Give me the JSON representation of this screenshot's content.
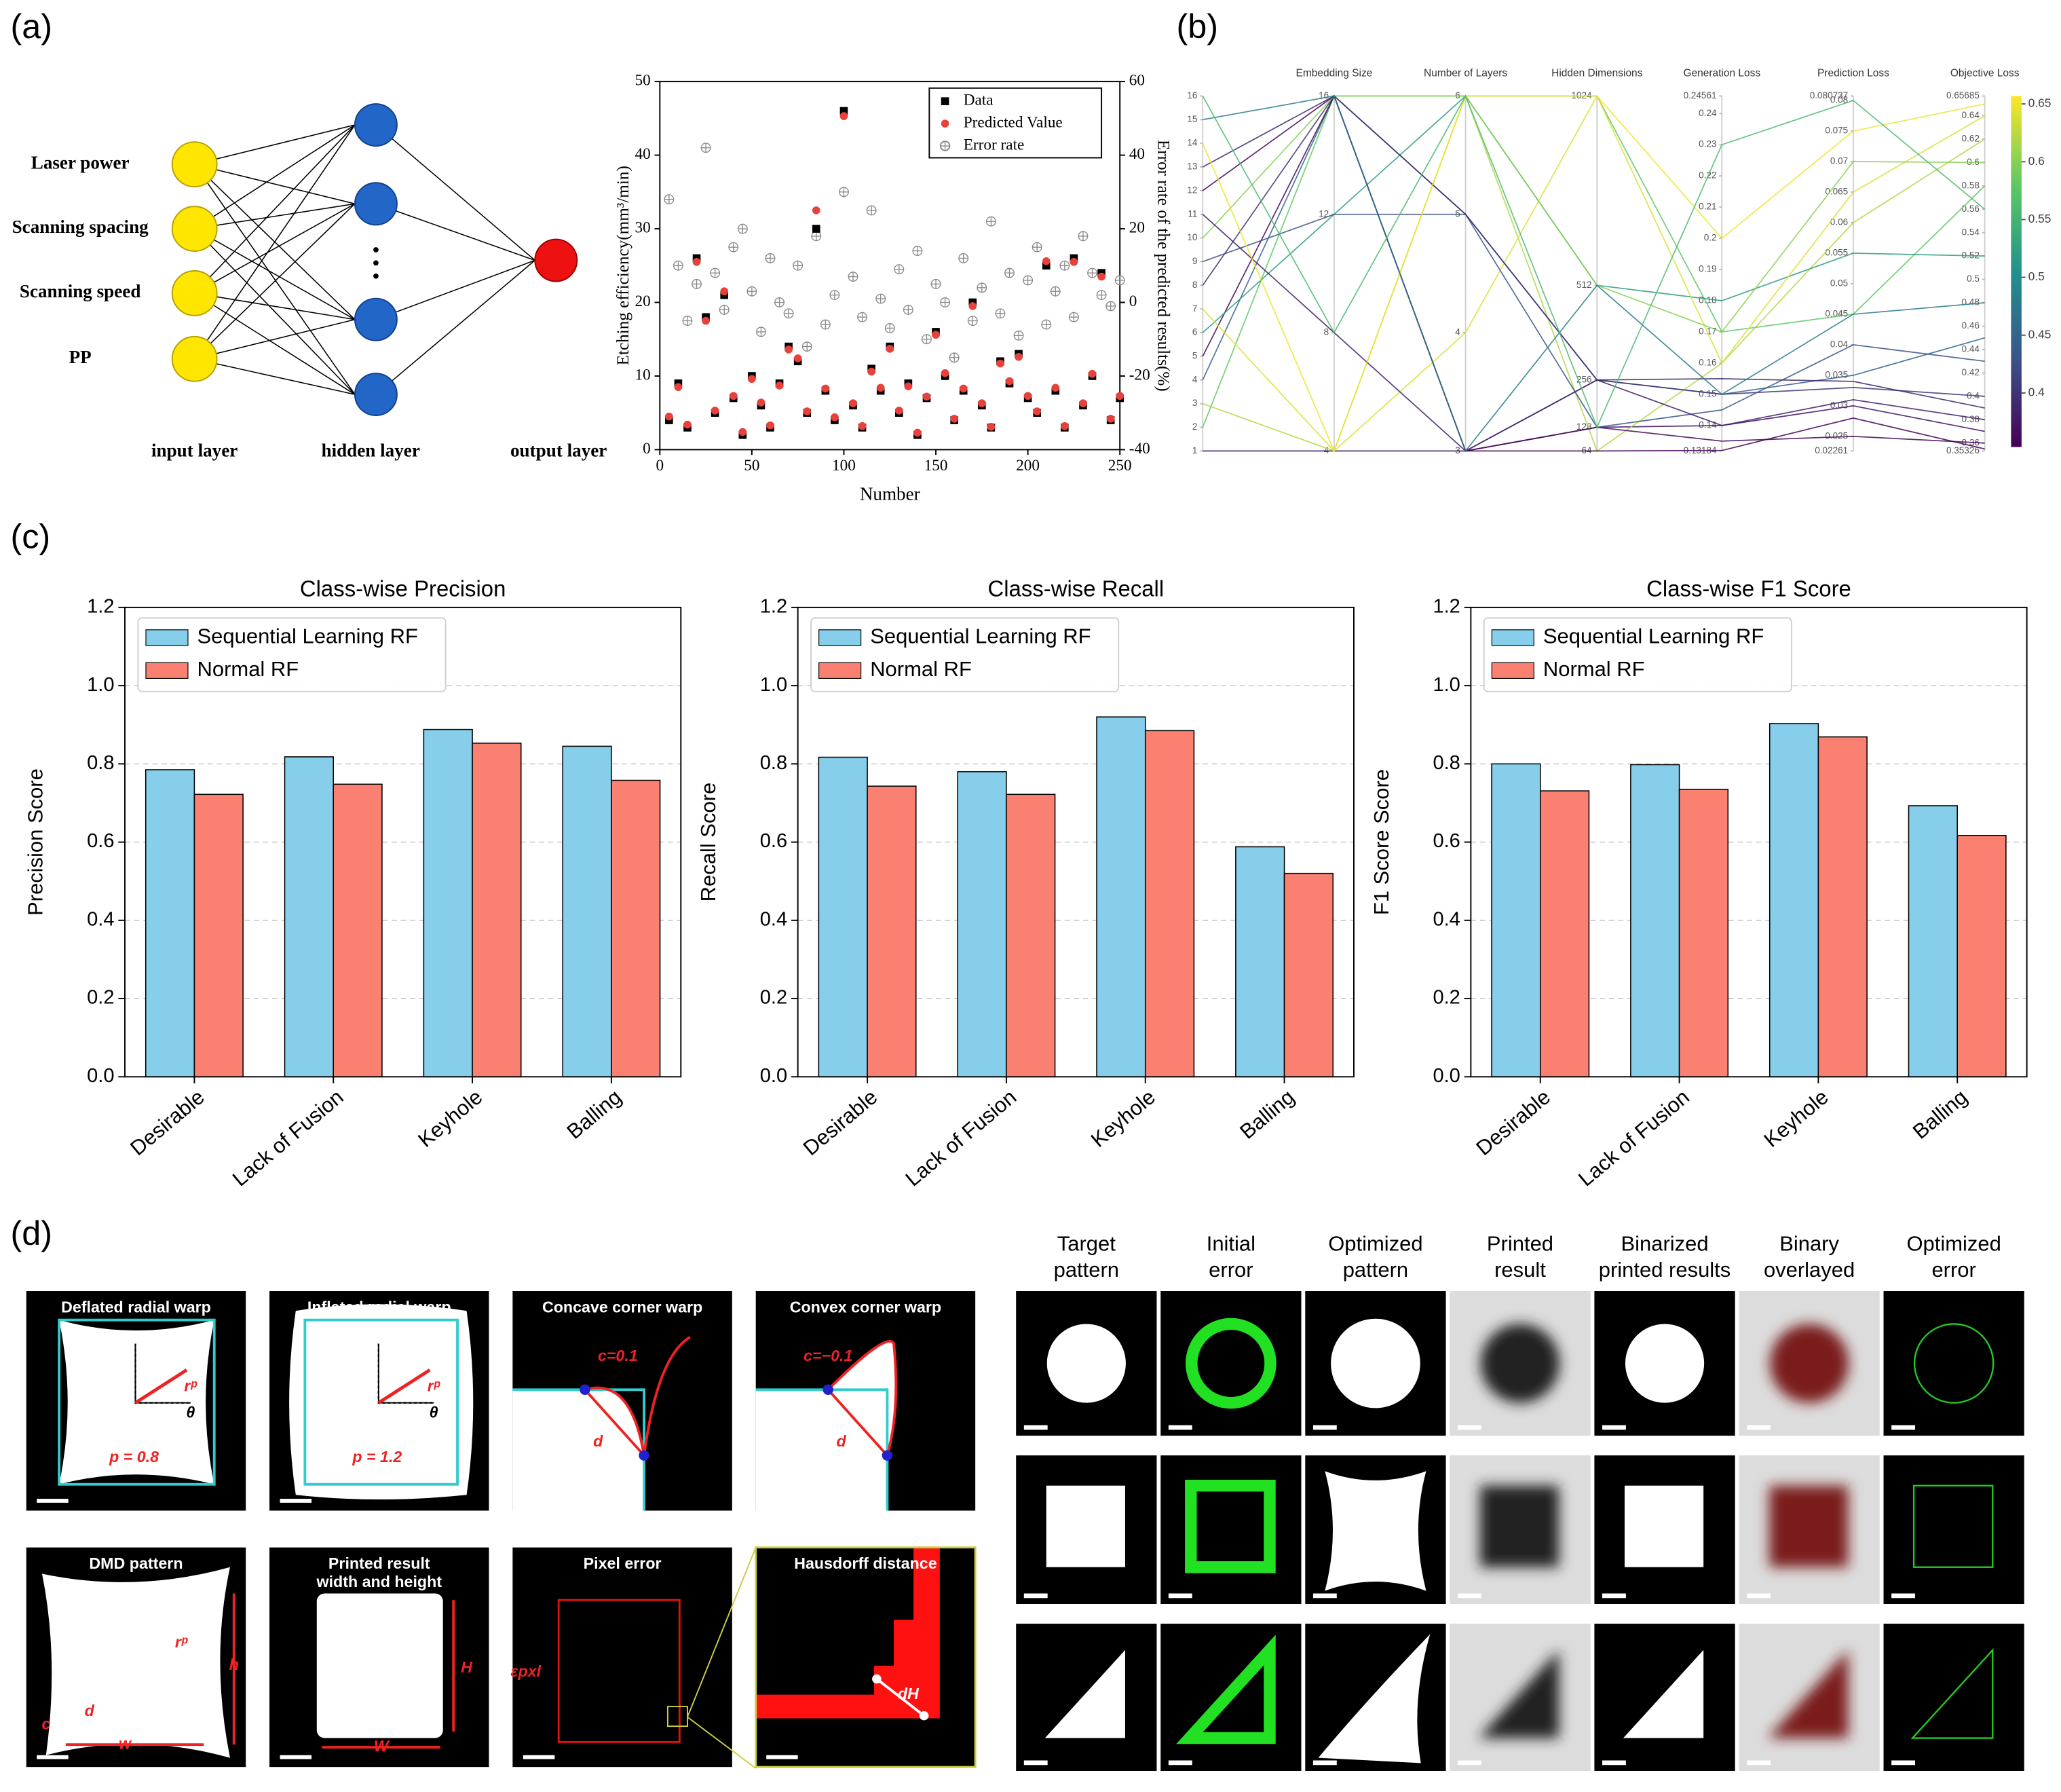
{
  "panel_labels": [
    "(a)",
    "(b)",
    "(c)",
    "(d)"
  ],
  "network": {
    "inputs": [
      "Laser power",
      "Scanning spacing",
      "Scanning speed",
      "PP"
    ],
    "layer_labels": [
      "input layer",
      "hidden layer",
      "output layer"
    ]
  },
  "chart_data": [
    {
      "type": "scatter",
      "xlabel": "Number",
      "ylabel": "Etching efficiency(mm³/min)",
      "y2label": "Error rate of the predicted results(%)",
      "xlim": [
        0,
        250
      ],
      "xticks": [
        0,
        50,
        100,
        150,
        200,
        250
      ],
      "ylim": [
        0,
        50
      ],
      "yticks": [
        0,
        10,
        20,
        30,
        40,
        50
      ],
      "y2lim": [
        -40,
        60
      ],
      "y2ticks": [
        -40,
        -20,
        0,
        20,
        40,
        60
      ],
      "legend": "upper right",
      "x": [
        5,
        10,
        15,
        20,
        25,
        30,
        35,
        40,
        45,
        50,
        55,
        60,
        65,
        70,
        75,
        80,
        85,
        90,
        95,
        100,
        105,
        110,
        115,
        120,
        125,
        130,
        135,
        140,
        145,
        150,
        155,
        160,
        165,
        170,
        175,
        180,
        185,
        190,
        195,
        200,
        205,
        210,
        215,
        220,
        225,
        230,
        235,
        240,
        245,
        250
      ],
      "series": [
        {
          "name": "Data",
          "color": "#000000",
          "marker": "square",
          "values": [
            4,
            9,
            3,
            26,
            18,
            5,
            21,
            7,
            2,
            10,
            6,
            3,
            9,
            14,
            12,
            5,
            30,
            8,
            4,
            46,
            6,
            3,
            11,
            8,
            14,
            5,
            9,
            2,
            7,
            16,
            10,
            4,
            8,
            20,
            6,
            3,
            12,
            9,
            13,
            7,
            5,
            25,
            8,
            3,
            26,
            6,
            10,
            24,
            4,
            7
          ]
        },
        {
          "name": "Predicted Value",
          "color": "#e8403a",
          "marker": "circle",
          "values": [
            4.5,
            8.5,
            3.4,
            25.5,
            17.5,
            5.3,
            21.5,
            7.3,
            2.4,
            9.6,
            6.4,
            3.3,
            8.7,
            13.6,
            12.4,
            5.2,
            32.5,
            8.3,
            4.4,
            45.3,
            6.3,
            3.2,
            10.6,
            8.4,
            13.7,
            5.3,
            8.6,
            2.3,
            7.2,
            15.6,
            10.4,
            4.2,
            8.3,
            19.5,
            6.3,
            3.1,
            11.7,
            9.3,
            12.6,
            7.3,
            5.2,
            25.6,
            8.4,
            3.2,
            25.5,
            6.3,
            10.3,
            23.5,
            4.2,
            7.3
          ]
        },
        {
          "name": "Error rate",
          "color": "#8a8a8a",
          "marker": "circle-plus",
          "axis": "y2",
          "values": [
            28,
            10,
            -5,
            5,
            42,
            8,
            -2,
            15,
            20,
            3,
            -8,
            12,
            0,
            -3,
            10,
            -12,
            18,
            -6,
            2,
            30,
            7,
            -4,
            25,
            1,
            -7,
            9,
            -2,
            14,
            -10,
            5,
            0,
            -15,
            12,
            -5,
            4,
            22,
            -3,
            8,
            -9,
            6,
            15,
            -6,
            3,
            10,
            -4,
            18,
            8,
            2,
            -1,
            6
          ]
        }
      ]
    },
    {
      "type": "parallel",
      "axes": [
        {
          "lim": [
            1,
            16
          ],
          "ticks": [
            1,
            2,
            3,
            4,
            5,
            6,
            7,
            8,
            9,
            10,
            11,
            12,
            13,
            14,
            15,
            16
          ]
        },
        {
          "name": "Embedding Size",
          "lim": [
            4,
            16
          ],
          "ticks": [
            4,
            8,
            12,
            16
          ]
        },
        {
          "name": "Number of Layers",
          "lim": [
            3,
            6
          ],
          "ticks": [
            3,
            4,
            5,
            6
          ]
        },
        {
          "name": "Hidden Dimensions",
          "lim": [
            64,
            1024
          ],
          "ticks": [
            64,
            128,
            256,
            512,
            1024
          ]
        },
        {
          "name": "Generation Loss",
          "lim": [
            0.13184,
            0.24561
          ],
          "ticks": [
            0.13184,
            0.14,
            0.15,
            0.16,
            0.17,
            0.18,
            0.19,
            0.2,
            0.21,
            0.22,
            0.23,
            0.24,
            0.24561
          ]
        },
        {
          "name": "Prediction Loss",
          "lim": [
            0.02261,
            0.080737
          ],
          "ticks": [
            0.02261,
            0.025,
            0.03,
            0.035,
            0.04,
            0.045,
            0.05,
            0.055,
            0.06,
            0.065,
            0.07,
            0.075,
            0.08,
            0.080737
          ]
        },
        {
          "name": "Objective Loss",
          "lim": [
            0.35326,
            0.65685
          ],
          "ticks": [
            0.35326,
            0.36,
            0.38,
            0.4,
            0.42,
            0.44,
            0.46,
            0.48,
            0.5,
            0.52,
            0.54,
            0.56,
            0.58,
            0.6,
            0.62,
            0.64,
            0.65685
          ]
        }
      ],
      "colorbar": {
        "lim": [
          0.35326,
          0.65685
        ],
        "ticks": [
          0.4,
          0.45,
          0.5,
          0.55,
          0.6,
          0.65
        ],
        "colormap": "viridis"
      },
      "lines": [
        [
          1,
          4,
          3,
          128,
          0.14,
          0.03,
          0.37
        ],
        [
          2,
          16,
          6,
          1024,
          0.17,
          0.045,
          0.58
        ],
        [
          3,
          4,
          6,
          64,
          0.16,
          0.06,
          0.62
        ],
        [
          4,
          16,
          5,
          256,
          0.15,
          0.035,
          0.45
        ],
        [
          5,
          16,
          3,
          128,
          0.135,
          0.025,
          0.36
        ],
        [
          6,
          12,
          6,
          512,
          0.18,
          0.055,
          0.52
        ],
        [
          7,
          4,
          4,
          1024,
          0.16,
          0.065,
          0.64
        ],
        [
          8,
          16,
          3,
          256,
          0.15,
          0.033,
          0.4
        ],
        [
          9,
          12,
          5,
          128,
          0.145,
          0.04,
          0.43
        ],
        [
          10,
          16,
          6,
          512,
          0.17,
          0.07,
          0.6
        ],
        [
          11,
          8,
          3,
          256,
          0.14,
          0.031,
          0.38
        ],
        [
          12,
          16,
          3,
          64,
          0.132,
          0.028,
          0.355
        ],
        [
          13,
          16,
          5,
          256,
          0.155,
          0.034,
          0.39
        ],
        [
          14,
          4,
          6,
          1024,
          0.2,
          0.075,
          0.65
        ],
        [
          15,
          16,
          3,
          512,
          0.15,
          0.045,
          0.48
        ],
        [
          16,
          8,
          6,
          128,
          0.23,
          0.08,
          0.56
        ]
      ]
    },
    {
      "type": "bar",
      "title": "Class-wise Precision",
      "ylabel": "Precision Score",
      "categories": [
        "Desirable",
        "Lack of Fusion",
        "Keyhole",
        "Balling"
      ],
      "ylim": [
        0,
        1.2
      ],
      "yticks": [
        {
          "value": 0,
          "label": "0.0"
        },
        {
          "value": 0.2,
          "label": "0.2"
        },
        {
          "value": 0.4,
          "label": "0.4"
        },
        {
          "value": 0.6,
          "label": "0.6"
        },
        {
          "value": 0.8,
          "label": "0.8"
        },
        {
          "value": 1,
          "label": "1.0"
        },
        {
          "value": 1.2,
          "label": "1.2"
        }
      ],
      "grid": true,
      "legend": "upper left",
      "series": [
        {
          "name": "Sequential Learning RF",
          "color": "#87ceeb",
          "values": [
            0.785,
            0.818,
            0.888,
            0.845
          ]
        },
        {
          "name": "Normal RF",
          "color": "#fa8072",
          "values": [
            0.722,
            0.748,
            0.853,
            0.758
          ]
        }
      ]
    },
    {
      "type": "bar",
      "title": "Class-wise Recall",
      "ylabel": "Recall Score",
      "categories": [
        "Desirable",
        "Lack of Fusion",
        "Keyhole",
        "Balling"
      ],
      "ylim": [
        0,
        1.2
      ],
      "yticks": [
        {
          "value": 0,
          "label": "0.0"
        },
        {
          "value": 0.2,
          "label": "0.2"
        },
        {
          "value": 0.4,
          "label": "0.4"
        },
        {
          "value": 0.6,
          "label": "0.6"
        },
        {
          "value": 0.8,
          "label": "0.8"
        },
        {
          "value": 1,
          "label": "1.0"
        },
        {
          "value": 1.2,
          "label": "1.2"
        }
      ],
      "grid": true,
      "legend": "upper left",
      "series": [
        {
          "name": "Sequential Learning RF",
          "color": "#87ceeb",
          "values": [
            0.817,
            0.78,
            0.92,
            0.588
          ]
        },
        {
          "name": "Normal RF",
          "color": "#fa8072",
          "values": [
            0.743,
            0.722,
            0.885,
            0.52
          ]
        }
      ]
    },
    {
      "type": "bar",
      "title": "Class-wise F1 Score",
      "ylabel": "F1 Score Score",
      "categories": [
        "Desirable",
        "Lack of Fusion",
        "Keyhole",
        "Balling"
      ],
      "ylim": [
        0,
        1.2
      ],
      "yticks": [
        {
          "value": 0,
          "label": "0.0"
        },
        {
          "value": 0.2,
          "label": "0.2"
        },
        {
          "value": 0.4,
          "label": "0.4"
        },
        {
          "value": 0.6,
          "label": "0.6"
        },
        {
          "value": 0.8,
          "label": "0.8"
        },
        {
          "value": 1,
          "label": "1.0"
        },
        {
          "value": 1.2,
          "label": "1.2"
        }
      ],
      "grid": true,
      "legend": "upper left",
      "series": [
        {
          "name": "Sequential Learning RF",
          "color": "#87ceeb",
          "values": [
            0.8,
            0.798,
            0.903,
            0.693
          ]
        },
        {
          "name": "Normal RF",
          "color": "#fa8072",
          "values": [
            0.731,
            0.735,
            0.869,
            0.617
          ]
        }
      ]
    }
  ],
  "warp_tiles": [
    {
      "title": [
        "Deflated radial warp"
      ],
      "labels": [
        "rᵖ",
        "θ",
        "p = 0.8"
      ]
    },
    {
      "title": [
        "Inflated radial warp"
      ],
      "labels": [
        "rᵖ",
        "θ",
        "p = 1.2"
      ]
    },
    {
      "title": [
        "Concave corner warp"
      ],
      "labels": [
        "c=0.1",
        "d"
      ]
    },
    {
      "title": [
        "Convex corner warp"
      ],
      "labels": [
        "c=−0.1",
        "d"
      ]
    },
    {
      "title": [
        "DMD pattern"
      ],
      "labels": [
        "rᵖ",
        "h",
        "w",
        "c",
        "d"
      ]
    },
    {
      "title": [
        "Printed result",
        "width and height"
      ],
      "labels": [
        "H",
        "W"
      ]
    },
    {
      "title": [
        "Pixel error"
      ],
      "labels": [
        "εpxl"
      ]
    },
    {
      "title": [
        "Hausdorff distance"
      ],
      "labels": [
        "dH"
      ]
    }
  ],
  "pattern_columns": [
    [
      "Target",
      "pattern"
    ],
    [
      "Initial",
      "error"
    ],
    [
      "Optimized",
      "pattern"
    ],
    [
      "Printed",
      "result"
    ],
    [
      "Binarized",
      "printed results"
    ],
    [
      "Binary",
      "overlayed"
    ],
    [
      "Optimized",
      "error"
    ]
  ]
}
